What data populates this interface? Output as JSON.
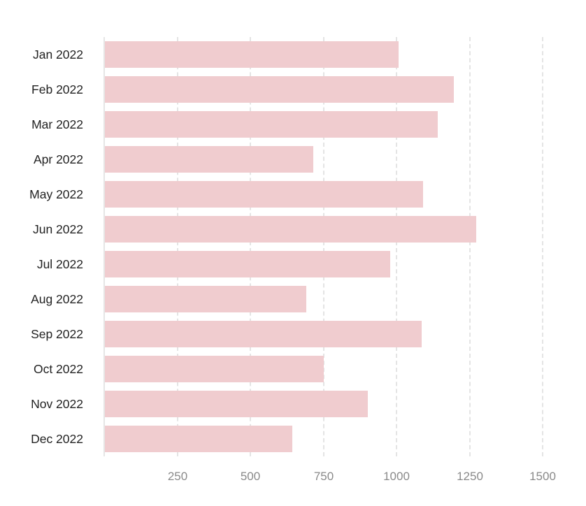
{
  "chart_data": {
    "type": "bar",
    "orientation": "horizontal",
    "title": "",
    "xlabel": "",
    "ylabel": "",
    "categories": [
      "Jan 2022",
      "Feb 2022",
      "Mar 2022",
      "Apr 2022",
      "May 2022",
      "Jun 2022",
      "Jul 2022",
      "Aug 2022",
      "Sep 2022",
      "Oct 2022",
      "Nov 2022",
      "Dec 2022"
    ],
    "values": [
      1008,
      1195,
      1142,
      716,
      1090,
      1272,
      979,
      692,
      1085,
      750,
      903,
      644
    ],
    "xlim": [
      0,
      1500
    ],
    "xticks": [
      250,
      500,
      750,
      1000,
      1250,
      1500
    ],
    "xtick_labels": [
      "250",
      "500",
      "750",
      "1000",
      "1250",
      "1500"
    ],
    "grid": {
      "x": true,
      "style": "dashed"
    },
    "legend": null,
    "colors": {
      "bar": "#efcacd",
      "grid": "#e4e4e4",
      "axis": "#e6e6e6",
      "category_text": "#222222",
      "tick_text": "#8a8a8a"
    }
  }
}
